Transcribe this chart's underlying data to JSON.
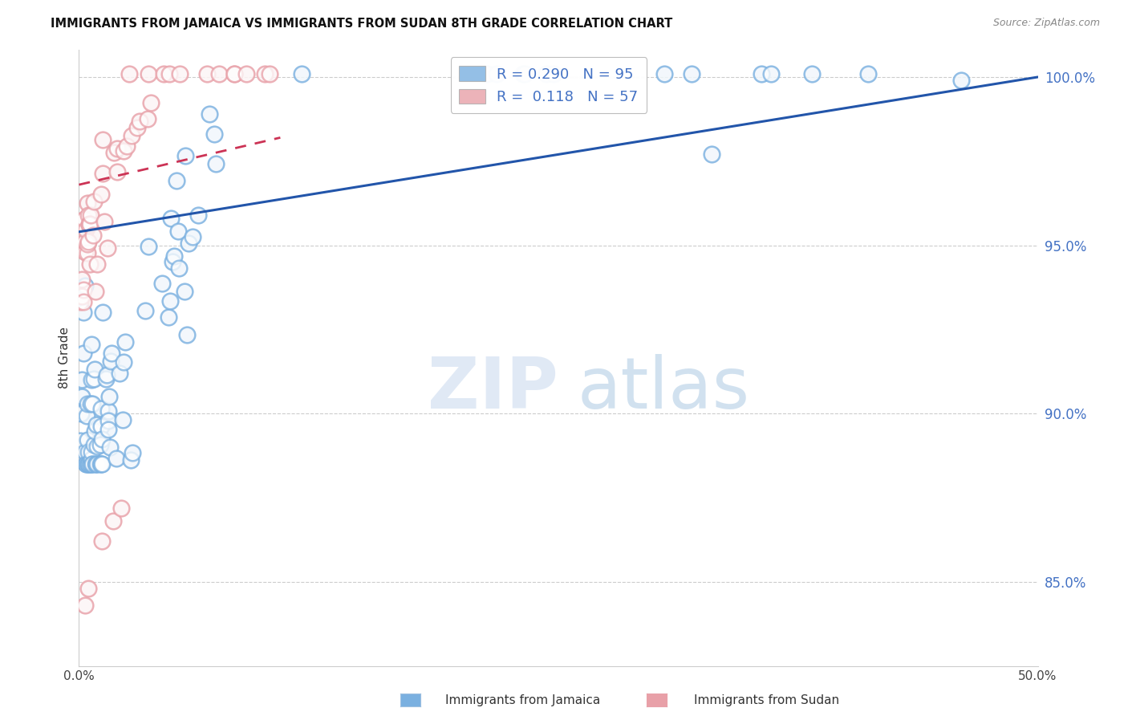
{
  "title": "IMMIGRANTS FROM JAMAICA VS IMMIGRANTS FROM SUDAN 8TH GRADE CORRELATION CHART",
  "source": "Source: ZipAtlas.com",
  "ylabel": "8th Grade",
  "xlim": [
    0.0,
    0.5
  ],
  "ylim": [
    0.825,
    1.008
  ],
  "yticks": [
    0.85,
    0.9,
    0.95,
    1.0
  ],
  "ytick_labels": [
    "85.0%",
    "90.0%",
    "95.0%",
    "100.0%"
  ],
  "xtick_positions": [
    0.0,
    0.1,
    0.2,
    0.3,
    0.4,
    0.5
  ],
  "xtick_labels": [
    "0.0%",
    "",
    "",
    "",
    "",
    "50.0%"
  ],
  "legend_jamaica": "Immigrants from Jamaica",
  "legend_sudan": "Immigrants from Sudan",
  "r_jamaica": 0.29,
  "n_jamaica": 95,
  "r_sudan": 0.118,
  "n_sudan": 57,
  "color_jamaica": "#7ab0e0",
  "color_sudan": "#e8a0a8",
  "trendline_jamaica_color": "#2255aa",
  "trendline_sudan_color": "#cc3355",
  "background_color": "#ffffff",
  "jam_trend_x0": 0.0,
  "jam_trend_x1": 0.5,
  "jam_trend_y0": 0.954,
  "jam_trend_y1": 1.0,
  "sud_trend_x0": 0.0,
  "sud_trend_x1": 0.105,
  "sud_trend_y0": 0.968,
  "sud_trend_y1": 0.982
}
